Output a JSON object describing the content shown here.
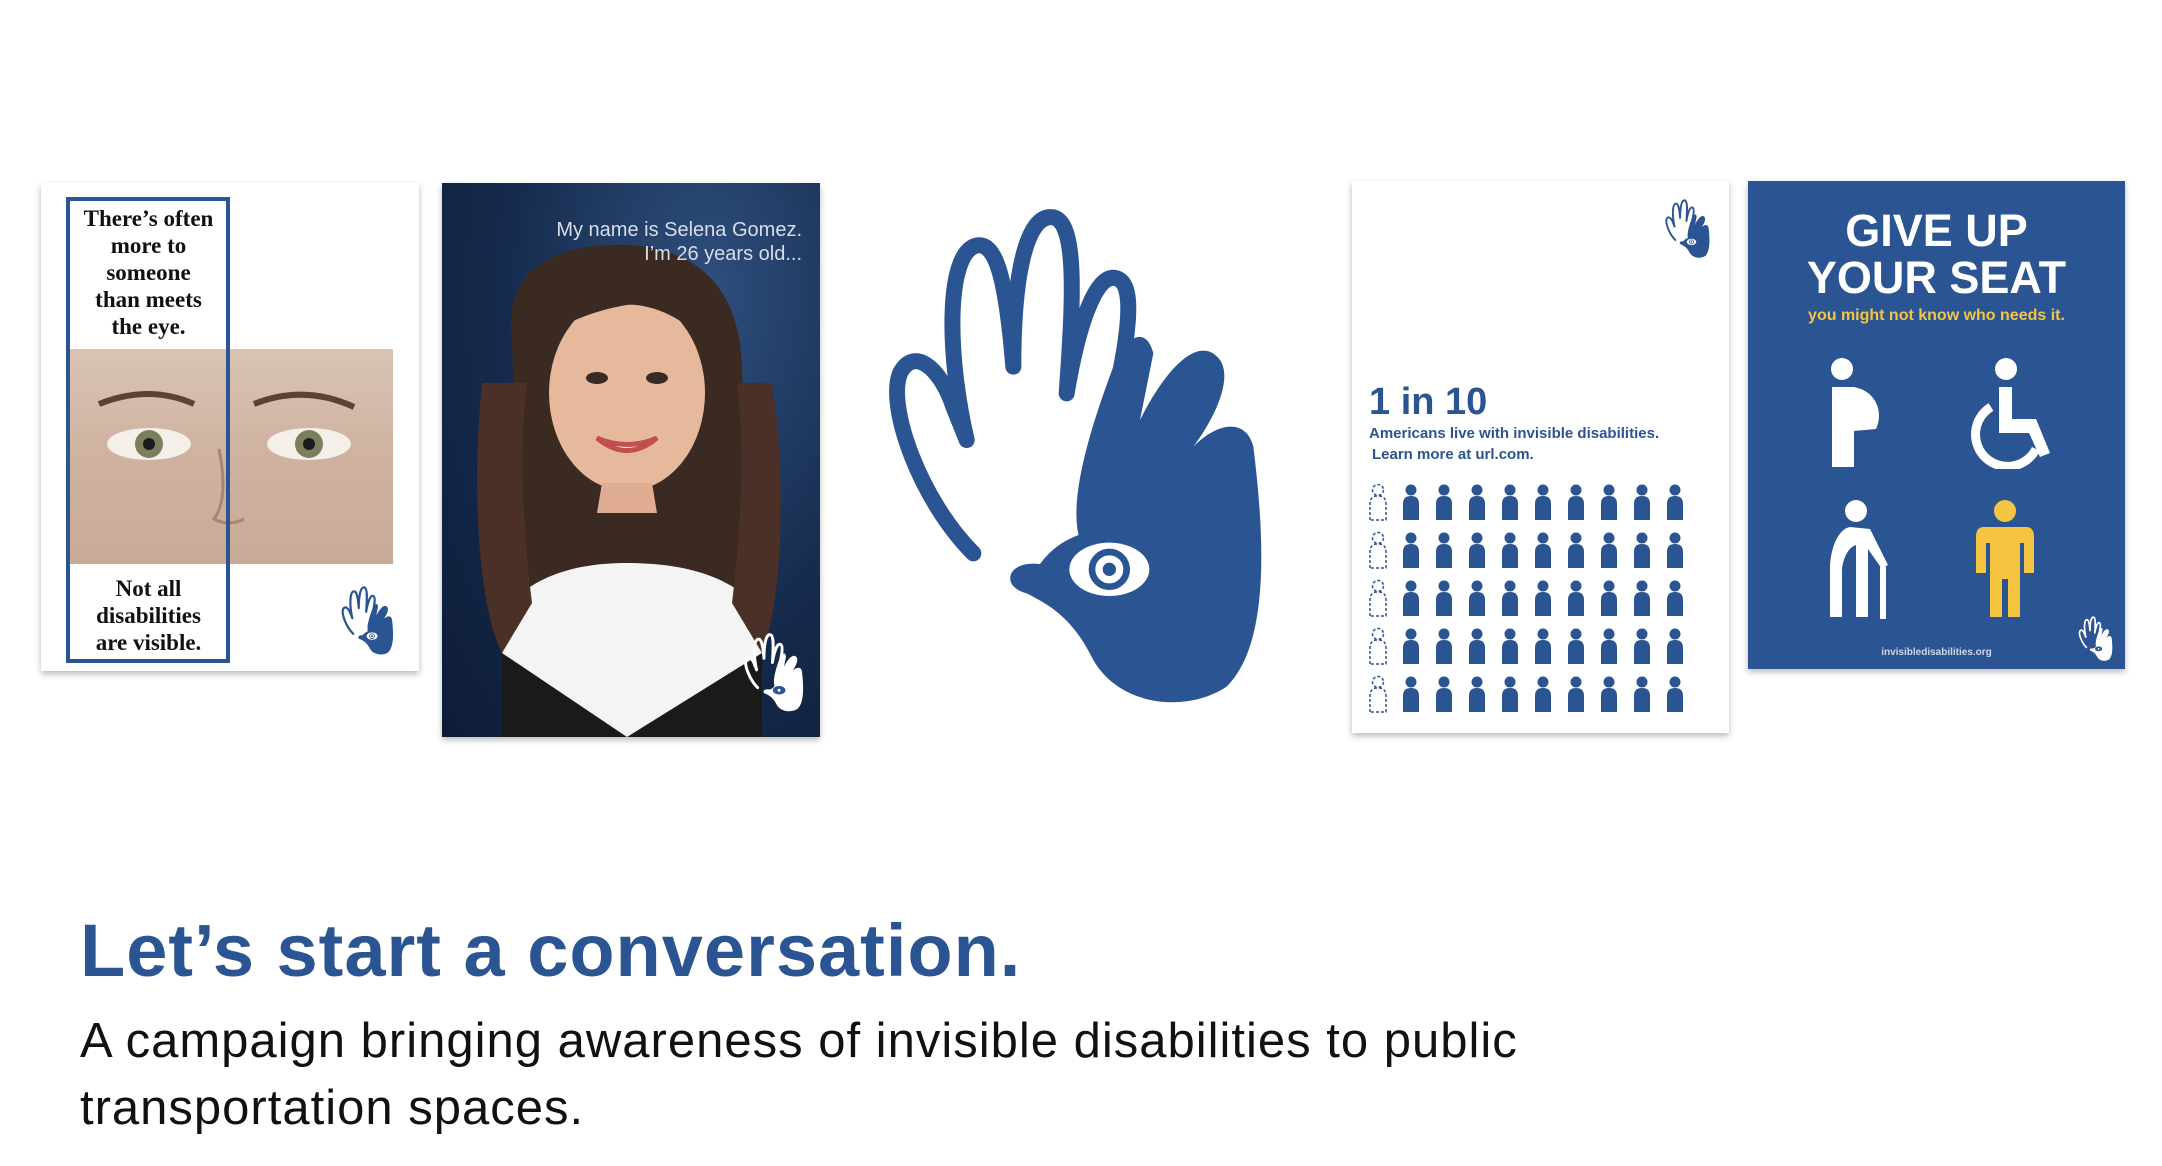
{
  "colors": {
    "brand_blue": "#2b5493",
    "accent_yellow": "#f5c542"
  },
  "poster_eye": {
    "top_text": [
      "There’s often",
      "more to",
      "someone",
      "than meets",
      "the eye."
    ],
    "bottom_text": [
      "Not all",
      "disabilities",
      "are visible."
    ]
  },
  "poster_portrait": {
    "line1": "My name is Selena Gomez.",
    "line2": "I’m 26 years old..."
  },
  "poster_stat": {
    "headline": "1 in 10",
    "line1": "Americans live with invisible disabilities.",
    "line2": "Learn more at url.com."
  },
  "poster_seat": {
    "title_line1": "GIVE UP",
    "title_line2": "YOUR SEAT",
    "tagline": "you might not know who needs it.",
    "url": "invisibledisabilities.org",
    "icons": [
      "pregnant-person-icon",
      "wheelchair-icon",
      "elderly-person-icon",
      "person-icon"
    ]
  },
  "logo": {
    "icon": "hand-eye-logo-icon"
  },
  "headline": "Let’s start a conversation.",
  "subheadline": "A campaign bringing awareness of invisible disabilities to public transportation spaces."
}
